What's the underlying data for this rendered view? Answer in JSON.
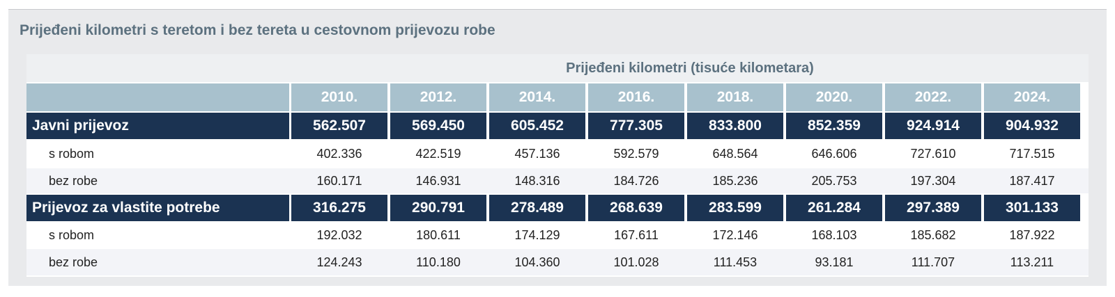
{
  "title": "Prijeđeni kilometri s teretom i bez tereta u cestovnom prijevozu robe",
  "table": {
    "group_header": "Prijeđeni kilometri (tisuće kilometara)",
    "columns": [
      "2010.",
      "2012.",
      "2014.",
      "2016.",
      "2018.",
      "2020.",
      "2022.",
      "2024."
    ],
    "rows": [
      {
        "label": "Javni prijevoz",
        "cells": [
          "562.507",
          "569.450",
          "605.452",
          "777.305",
          "833.800",
          "852.359",
          "924.914",
          "904.932"
        ]
      },
      {
        "label": "s robom",
        "cells": [
          "402.336",
          "422.519",
          "457.136",
          "592.579",
          "648.564",
          "646.606",
          "727.610",
          "717.515"
        ]
      },
      {
        "label": "bez robe",
        "cells": [
          "160.171",
          "146.931",
          "148.316",
          "184.726",
          "185.236",
          "205.753",
          "197.304",
          "187.417"
        ]
      },
      {
        "label": "Prijevoz za vlastite potrebe",
        "cells": [
          "316.275",
          "290.791",
          "278.489",
          "268.639",
          "283.599",
          "261.284",
          "297.389",
          "301.133"
        ]
      },
      {
        "label": "s robom",
        "cells": [
          "192.032",
          "180.611",
          "174.129",
          "167.611",
          "172.146",
          "168.103",
          "185.682",
          "187.922"
        ]
      },
      {
        "label": "bez robe",
        "cells": [
          "124.243",
          "110.180",
          "104.360",
          "101.028",
          "111.453",
          "93.181",
          "111.707",
          "113.211"
        ]
      }
    ]
  }
}
